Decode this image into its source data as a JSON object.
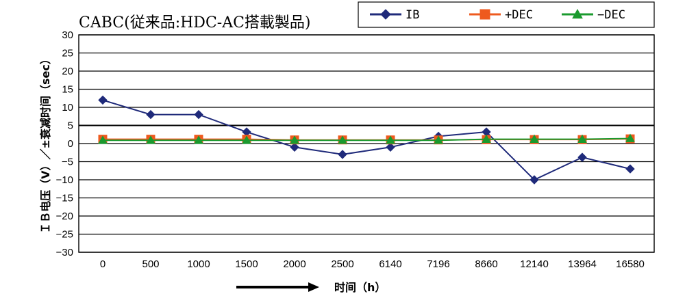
{
  "chart_data": {
    "type": "line",
    "title": "CABC(従来品:HDC-AC搭載製品)",
    "xlabel": "时间（h）",
    "ylabel": "ＩＢ电压（V）／±衰减时间（sec）",
    "categories": [
      "0",
      "500",
      "1000",
      "1500",
      "2000",
      "2500",
      "6140",
      "7196",
      "8660",
      "12140",
      "13964",
      "16580"
    ],
    "ylim": [
      -30,
      30
    ],
    "yticks": [
      30,
      25,
      20,
      15,
      10,
      5,
      0,
      -5,
      -10,
      -15,
      -20,
      -25,
      -30
    ],
    "ytick_labels": [
      "30",
      "25",
      "20",
      "15",
      "10",
      "5",
      "0",
      "−5",
      "−10",
      "−15",
      "−20",
      "−25",
      "−30"
    ],
    "grid": true,
    "legend_position": "top-right",
    "series": [
      {
        "name": "IB",
        "color": "#1f2a7a",
        "marker": "diamond",
        "values": [
          12,
          8,
          8,
          3.2,
          -1,
          -3,
          -1,
          2,
          3.2,
          -10,
          -3.8,
          -7
        ]
      },
      {
        "name": "+DEC",
        "color": "#ee5a1e",
        "marker": "square",
        "values": [
          1.2,
          1.2,
          1.2,
          1.2,
          1.0,
          1.0,
          1.0,
          1.0,
          1.1,
          1.1,
          1.1,
          1.3
        ]
      },
      {
        "name": "−DEC",
        "color": "#1a9a2e",
        "marker": "triangle",
        "values": [
          0.9,
          0.9,
          0.9,
          0.9,
          0.9,
          0.9,
          0.9,
          0.9,
          1.2,
          1.2,
          1.2,
          1.4
        ]
      }
    ]
  }
}
